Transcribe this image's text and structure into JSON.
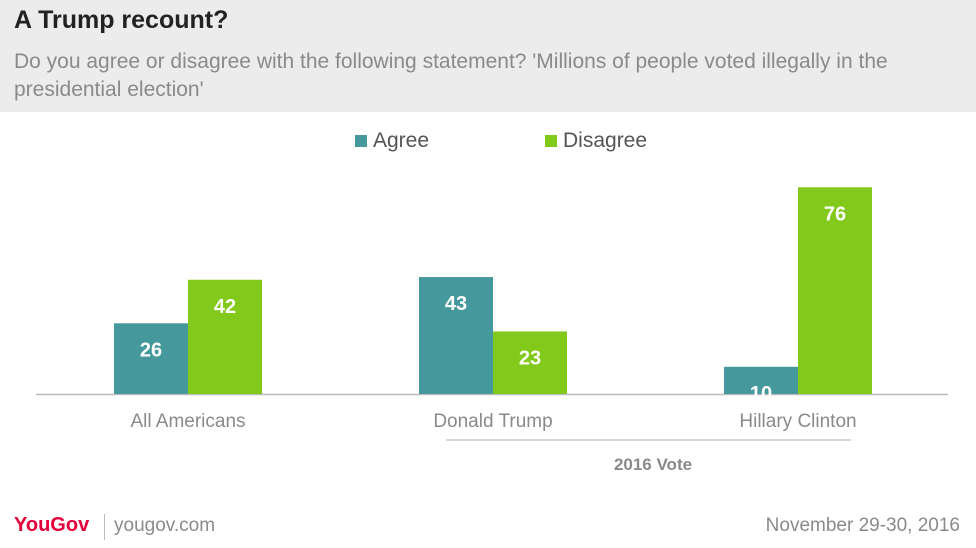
{
  "header": {
    "title": "A Trump recount?",
    "subtitle": "Do you agree or disagree with the following statement? 'Millions of people voted illegally in the presidential election'"
  },
  "colors": {
    "agree": "#45999c",
    "disagree": "#82c91c",
    "header_bg": "#ececec",
    "brand": "#e4003b"
  },
  "chart_data": {
    "type": "bar",
    "title": "A Trump recount?",
    "categories": [
      "All Americans",
      "Donald Trump",
      "Hillary Clinton"
    ],
    "series": [
      {
        "name": "Agree",
        "values": [
          26,
          43,
          10
        ]
      },
      {
        "name": "Disagree",
        "values": [
          42,
          23,
          76
        ]
      }
    ],
    "group_label": "2016 Vote",
    "group_categories": [
      "Donald Trump",
      "Hillary Clinton"
    ],
    "legend_placement": "top",
    "grid": false,
    "ylim": [
      0,
      80
    ]
  },
  "footer": {
    "logo": "YouGov",
    "site": "yougov.com",
    "date": "November 29-30, 2016"
  }
}
